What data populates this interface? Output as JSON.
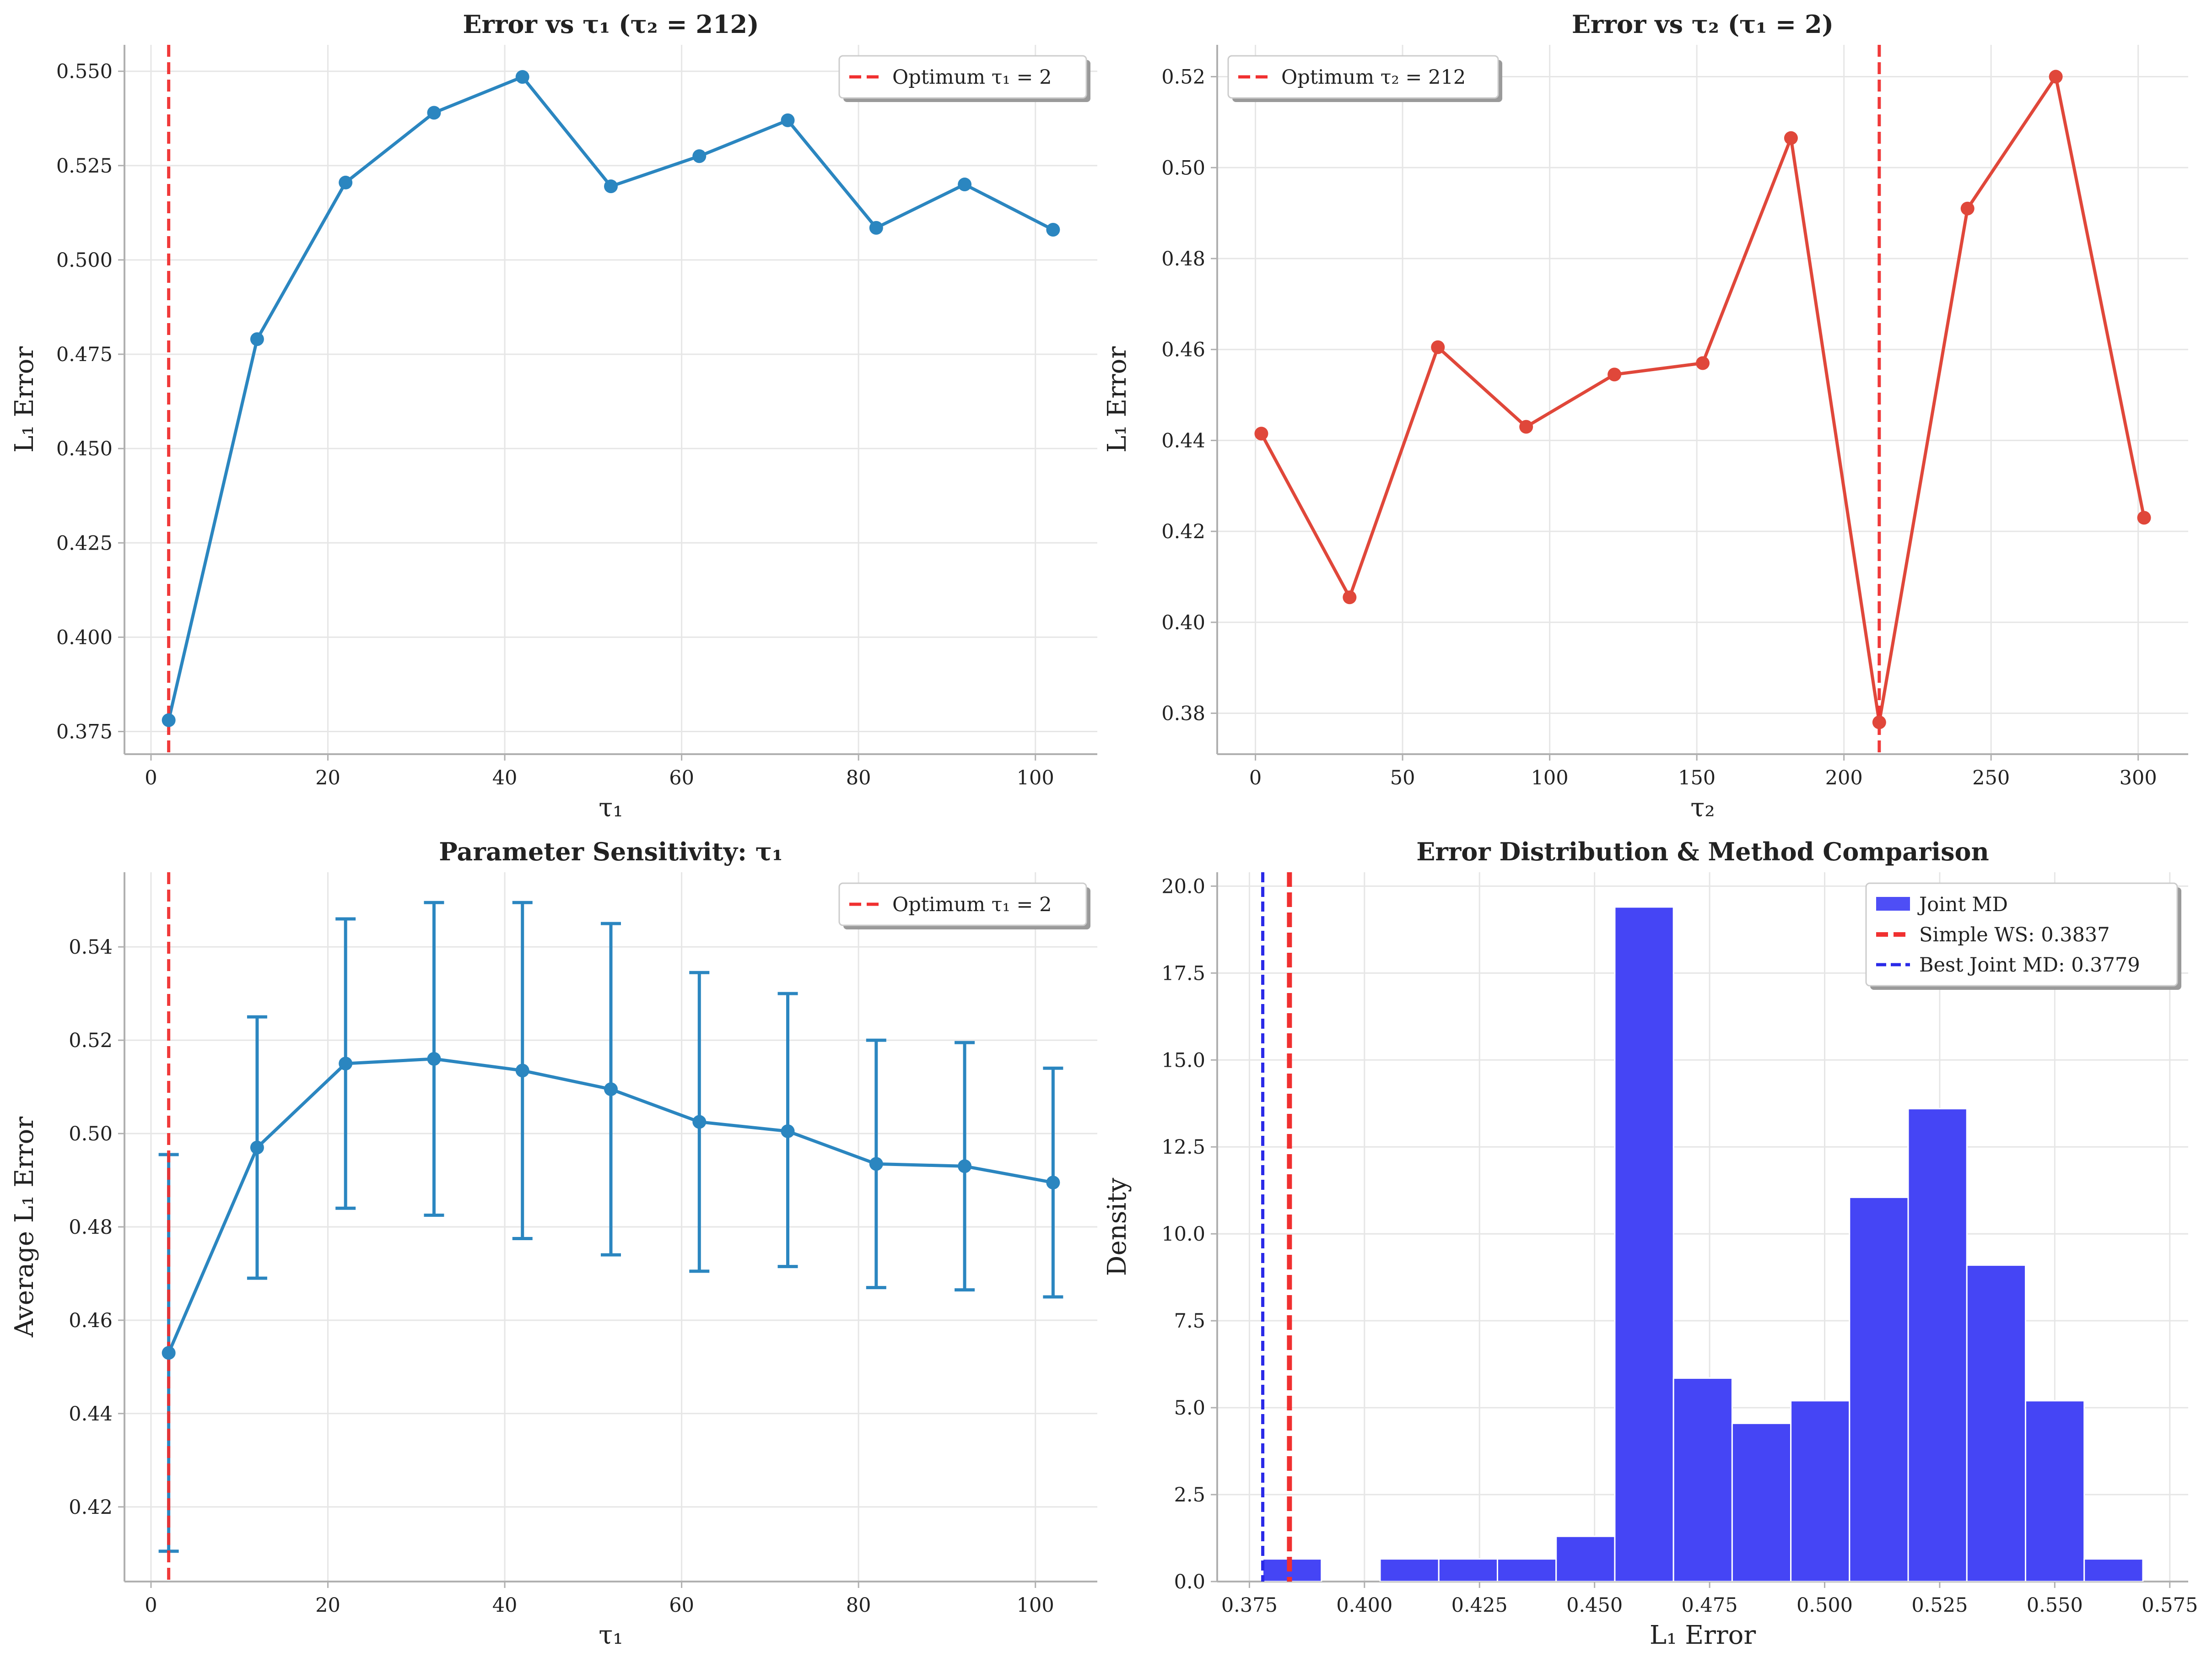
{
  "colors": {
    "blue_line": "#2b86c0",
    "red_line": "#e0473a",
    "optimum_red": "#f03030",
    "hist_blue": "#4545f5",
    "best_blue": "#2a2ae8"
  },
  "chart_data": [
    {
      "type": "line",
      "title": "Error vs τ₁ (τ₂ = 212)",
      "xlabel": "τ₁",
      "ylabel": "L₁ Error",
      "x": [
        2,
        12,
        22,
        32,
        42,
        52,
        62,
        72,
        82,
        92,
        102
      ],
      "series": [
        {
          "values": [
            0.378,
            0.479,
            0.5205,
            0.539,
            0.5485,
            0.5195,
            0.5275,
            0.537,
            0.5085,
            0.52,
            0.508
          ]
        }
      ],
      "xlim": [
        -3,
        107
      ],
      "ylim": [
        0.369,
        0.557
      ],
      "xticks": [
        0,
        20,
        40,
        60,
        80,
        100
      ],
      "yticks": [
        0.375,
        0.4,
        0.425,
        0.45,
        0.475,
        0.5,
        0.525,
        0.55
      ],
      "ytick_labels": [
        "0.375",
        "0.400",
        "0.425",
        "0.450",
        "0.475",
        "0.500",
        "0.525",
        "0.550"
      ],
      "vline": {
        "x": 2,
        "label": "Optimum τ₁ = 2"
      },
      "legend": "top-right",
      "grid": true
    },
    {
      "type": "line",
      "title": "Error vs τ₂ (τ₁ = 2)",
      "xlabel": "τ₂",
      "ylabel": "L₁ Error",
      "x": [
        2,
        32,
        62,
        92,
        122,
        152,
        182,
        212,
        242,
        272,
        302
      ],
      "series": [
        {
          "values": [
            0.4415,
            0.4055,
            0.4605,
            0.443,
            0.4545,
            0.457,
            0.5065,
            0.378,
            0.491,
            0.52,
            0.423
          ]
        }
      ],
      "xlim": [
        -13,
        317
      ],
      "ylim": [
        0.371,
        0.527
      ],
      "xticks": [
        0,
        50,
        100,
        150,
        200,
        250,
        300
      ],
      "yticks": [
        0.38,
        0.4,
        0.42,
        0.44,
        0.46,
        0.48,
        0.5,
        0.52
      ],
      "ytick_labels": [
        "0.38",
        "0.40",
        "0.42",
        "0.44",
        "0.46",
        "0.48",
        "0.50",
        "0.52"
      ],
      "vline": {
        "x": 212,
        "label": "Optimum τ₂ = 212"
      },
      "legend": "top-left",
      "grid": true
    },
    {
      "type": "line",
      "title": "Parameter Sensitivity: τ₁",
      "xlabel": "τ₁",
      "ylabel": "Average L₁ Error",
      "x": [
        2,
        12,
        22,
        32,
        42,
        52,
        62,
        72,
        82,
        92,
        102
      ],
      "series": [
        {
          "values": [
            0.453,
            0.497,
            0.515,
            0.516,
            0.5135,
            0.5095,
            0.5025,
            0.5005,
            0.4935,
            0.493,
            0.4895
          ],
          "error_low": [
            0.4105,
            0.469,
            0.484,
            0.4825,
            0.4775,
            0.474,
            0.4705,
            0.4715,
            0.467,
            0.4665,
            0.465
          ],
          "error_high": [
            0.4955,
            0.525,
            0.546,
            0.5495,
            0.5495,
            0.545,
            0.5345,
            0.53,
            0.52,
            0.5195,
            0.514
          ]
        }
      ],
      "xlim": [
        -3,
        107
      ],
      "ylim": [
        0.404,
        0.556
      ],
      "xticks": [
        0,
        20,
        40,
        60,
        80,
        100
      ],
      "yticks": [
        0.42,
        0.44,
        0.46,
        0.48,
        0.5,
        0.52,
        0.54
      ],
      "ytick_labels": [
        "0.42",
        "0.44",
        "0.46",
        "0.48",
        "0.50",
        "0.52",
        "0.54"
      ],
      "vline": {
        "x": 2,
        "label": "Optimum τ₁ = 2"
      },
      "legend": "top-right",
      "grid": true
    },
    {
      "type": "histogram",
      "title": "Error Distribution & Method Comparison",
      "xlabel": "L₁ Error",
      "ylabel": "Density",
      "bin_start": 0.3779,
      "bin_width": 0.01275,
      "densities": [
        0.65,
        0,
        0.65,
        0.65,
        0.65,
        1.3,
        19.4,
        5.85,
        4.55,
        5.2,
        11.05,
        13.6,
        9.1,
        5.2,
        0.65
      ],
      "xlim": [
        0.368,
        0.579
      ],
      "ylim": [
        0,
        20.4
      ],
      "xticks": [
        0.375,
        0.4,
        0.425,
        0.45,
        0.475,
        0.5,
        0.525,
        0.55,
        0.575
      ],
      "xtick_labels": [
        "0.375",
        "0.400",
        "0.425",
        "0.450",
        "0.475",
        "0.500",
        "0.525",
        "0.550",
        "0.575"
      ],
      "yticks": [
        0,
        2.5,
        5,
        7.5,
        10,
        12.5,
        15,
        17.5,
        20
      ],
      "ytick_labels": [
        "0.0",
        "2.5",
        "5.0",
        "7.5",
        "10.0",
        "12.5",
        "15.0",
        "17.5",
        "20.0"
      ],
      "hist_label": "Joint MD",
      "simple_ws": {
        "x": 0.3837,
        "label": "Simple WS: 0.3837"
      },
      "best_joint": {
        "x": 0.3779,
        "label": "Best Joint MD: 0.3779"
      },
      "legend": "top-right",
      "grid": true
    }
  ]
}
